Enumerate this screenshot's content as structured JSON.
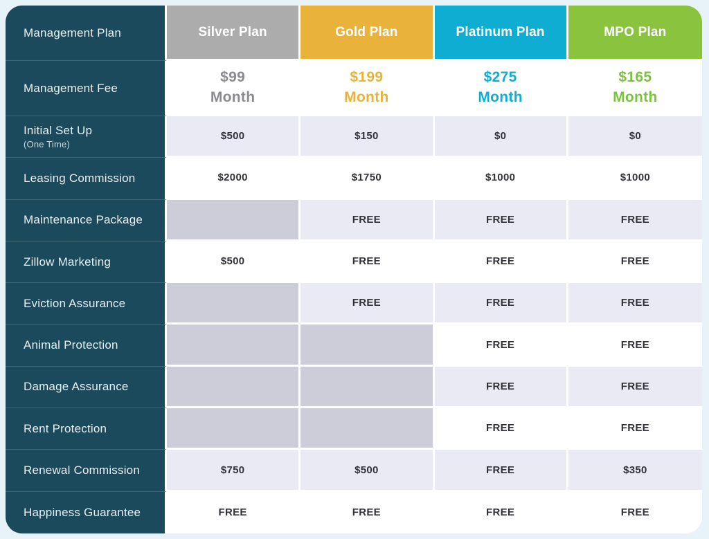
{
  "page": {
    "background": "#E7F3F8"
  },
  "table": {
    "corner_label": "Management Plan",
    "grid_line_color": "#FFFFFF",
    "label_column_bg": "#1A4A5C",
    "row_bg_alt": "#EAEAF5",
    "row_bg": "#FFFFFF",
    "blank_cell_bg": "#CDCDD9",
    "plans": [
      {
        "name": "Silver Plan",
        "header_bg": "#ACACAC",
        "accent": "#8B8B8F"
      },
      {
        "name": "Gold Plan",
        "header_bg": "#E9B23A",
        "accent": "#E9B23A"
      },
      {
        "name": "Platinum Plan",
        "header_bg": "#0FADD1",
        "accent": "#0FADD1"
      },
      {
        "name": "MPO Plan",
        "header_bg": "#8AC43F",
        "accent": "#7CC140"
      }
    ],
    "rows": [
      {
        "label": "Management Fee",
        "type": "fee",
        "values": [
          {
            "amount": "$99",
            "period": "Month"
          },
          {
            "amount": "$199",
            "period": "Month"
          },
          {
            "amount": "$275",
            "period": "Month"
          },
          {
            "amount": "$165",
            "period": "Month"
          }
        ]
      },
      {
        "label": "Initial Set Up",
        "sublabel": "(One Time)",
        "values": [
          "$500",
          "$150",
          "$0",
          "$0"
        ]
      },
      {
        "label": "Leasing Commission",
        "values": [
          "$2000",
          "$1750",
          "$1000",
          "$1000"
        ]
      },
      {
        "label": "Maintenance Package",
        "values": [
          "",
          "FREE",
          "FREE",
          "FREE"
        ]
      },
      {
        "label": "Zillow Marketing",
        "values": [
          "$500",
          "FREE",
          "FREE",
          "FREE"
        ]
      },
      {
        "label": "Eviction Assurance",
        "values": [
          "",
          "FREE",
          "FREE",
          "FREE"
        ]
      },
      {
        "label": "Animal Protection",
        "values": [
          "",
          "",
          "FREE",
          "FREE"
        ]
      },
      {
        "label": "Damage Assurance",
        "values": [
          "",
          "",
          "FREE",
          "FREE"
        ]
      },
      {
        "label": "Rent Protection",
        "values": [
          "",
          "",
          "FREE",
          "FREE"
        ]
      },
      {
        "label": "Renewal Commission",
        "values": [
          "$750",
          "$500",
          "FREE",
          "$350"
        ]
      },
      {
        "label": "Happiness Guarantee",
        "values": [
          "FREE",
          "FREE",
          "FREE",
          "FREE"
        ]
      }
    ]
  },
  "chart_data": {
    "type": "table",
    "title": "Management Plan pricing comparison",
    "columns": [
      "Management Plan",
      "Silver Plan",
      "Gold Plan",
      "Platinum Plan",
      "MPO Plan"
    ],
    "rows": [
      [
        "Management Fee",
        "$99 Month",
        "$199 Month",
        "$275 Month",
        "$165 Month"
      ],
      [
        "Initial Set Up (One Time)",
        "$500",
        "$150",
        "$0",
        "$0"
      ],
      [
        "Leasing Commission",
        "$2000",
        "$1750",
        "$1000",
        "$1000"
      ],
      [
        "Maintenance Package",
        "",
        "FREE",
        "FREE",
        "FREE"
      ],
      [
        "Zillow Marketing",
        "$500",
        "FREE",
        "FREE",
        "FREE"
      ],
      [
        "Eviction Assurance",
        "",
        "FREE",
        "FREE",
        "FREE"
      ],
      [
        "Animal Protection",
        "",
        "",
        "FREE",
        "FREE"
      ],
      [
        "Damage Assurance",
        "",
        "",
        "FREE",
        "FREE"
      ],
      [
        "Rent Protection",
        "",
        "",
        "FREE",
        "FREE"
      ],
      [
        "Renewal Commission",
        "$750",
        "$500",
        "FREE",
        "$350"
      ],
      [
        "Happiness Guarantee",
        "FREE",
        "FREE",
        "FREE",
        "FREE"
      ]
    ]
  }
}
